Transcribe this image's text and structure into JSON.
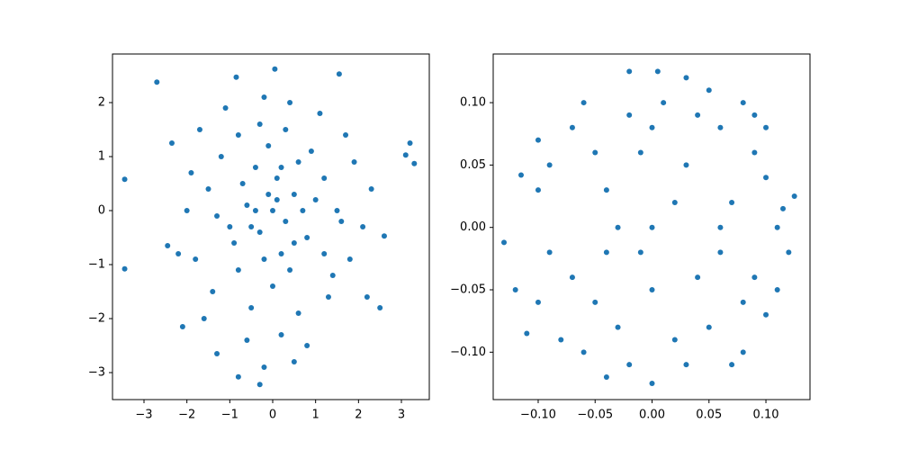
{
  "chart_data": [
    {
      "type": "scatter",
      "color": "#1f77b4",
      "x": [
        -3.45,
        -3.45,
        -2.7,
        3.1,
        3.2,
        3.3,
        0.05,
        -0.3,
        -0.8,
        1.55,
        -0.85,
        2.6,
        2.5,
        2.2,
        -2.1,
        -1.3,
        0.5,
        -0.2,
        -2.45,
        -2.35,
        0.1,
        -0.3,
        0.5,
        -0.6,
        0.2,
        -0.1,
        0.8,
        -1.0,
        1.2,
        -0.4,
        0.3,
        -1.5,
        1.6,
        0.0,
        -0.8,
        0.9,
        -1.2,
        1.4,
        -0.5,
        0.6,
        -1.8,
        1.9,
        0.4,
        -0.2,
        -1.1,
        1.1,
        -2.0,
        2.1,
        -0.7,
        0.7,
        -0.2,
        0.1,
        -0.9,
        1.0,
        -1.4,
        1.3,
        0.2,
        -0.6,
        1.7,
        -1.7,
        0.3,
        -0.4,
        0.6,
        -0.1,
        0.4,
        -1.3,
        1.5,
        -0.3,
        0.8,
        -2.2,
        2.3,
        -1.6,
        1.8,
        0.0,
        -0.5,
        0.2,
        1.2,
        -0.8,
        0.5,
        -1.9
      ],
      "y": [
        0.58,
        -1.08,
        2.38,
        1.03,
        1.25,
        0.87,
        2.62,
        -3.22,
        -3.08,
        2.53,
        2.47,
        -0.47,
        -1.8,
        -1.6,
        -2.15,
        -2.65,
        -2.8,
        -2.9,
        -0.65,
        1.25,
        0.2,
        -0.4,
        0.3,
        0.1,
        -0.8,
        1.2,
        -0.5,
        -0.3,
        0.6,
        0.8,
        1.5,
        0.4,
        -0.2,
        -1.4,
        -1.1,
        1.1,
        1.0,
        -1.2,
        -1.8,
        -1.9,
        -0.9,
        0.9,
        2.0,
        2.1,
        1.9,
        1.8,
        0.0,
        -0.3,
        0.5,
        0.0,
        -0.9,
        0.6,
        -0.6,
        0.2,
        -1.5,
        -1.6,
        -2.3,
        -2.4,
        1.4,
        1.5,
        -0.2,
        0.0,
        0.9,
        0.3,
        -1.1,
        -0.1,
        0.0,
        1.6,
        -2.5,
        -0.8,
        0.4,
        -2.0,
        -0.9,
        0.0,
        -0.3,
        0.8,
        -0.8,
        1.4,
        -0.6,
        0.7
      ],
      "xlim": [
        -3.734,
        3.65
      ],
      "ylim": [
        -3.5,
        2.9
      ],
      "xticks": [
        {
          "value": -3,
          "label": "−3"
        },
        {
          "value": -2,
          "label": "−2"
        },
        {
          "value": -1,
          "label": "−1"
        },
        0,
        1,
        2,
        3
      ],
      "yticks": [
        {
          "value": -3,
          "label": "−3"
        },
        {
          "value": -2,
          "label": "−2"
        },
        {
          "value": -1,
          "label": "−1"
        },
        0,
        1,
        2
      ]
    },
    {
      "type": "scatter",
      "color": "#1f77b4",
      "x": [
        0,
        0.03,
        -0.04,
        0.06,
        -0.05,
        0.02,
        -0.07,
        0.09,
        0.1,
        -0.09,
        0.01,
        -0.02,
        0.05,
        -0.06,
        0.11,
        0.08,
        -0.03,
        0.04,
        -0.1,
        0.07,
        -0.01,
        0.03,
        -0.08,
        0.09,
        -0.04,
        0.06,
        -0.05,
        0.0,
        0.1,
        -0.06,
        0.02,
        -0.02,
        0.11,
        0.04,
        -0.07,
        0.08,
        0.0,
        -0.03,
        0.05,
        -0.09,
        0.1,
        0.12,
        0.115,
        -0.04,
        0.03,
        0.09,
        -0.1,
        0.07,
        0.06,
        -0.01,
        -0.13,
        -0.115,
        -0.1,
        -0.12,
        -0.11,
        0.125,
        0.005,
        -0.02,
        0.0,
        0.08
      ],
      "y": [
        0,
        0.05,
        0.03,
        -0.02,
        -0.06,
        -0.09,
        0.08,
        0.06,
        -0.07,
        -0.02,
        0.1,
        -0.11,
        0.11,
        0.1,
        0.0,
        -0.1,
        -0.08,
        -0.04,
        0.03,
        0.02,
        0.06,
        -0.11,
        -0.09,
        -0.04,
        -0.02,
        0.08,
        0.06,
        -0.05,
        0.04,
        -0.1,
        0.02,
        0.09,
        -0.05,
        0.09,
        -0.04,
        -0.06,
        0.08,
        0.0,
        -0.08,
        0.05,
        0.08,
        -0.02,
        0.015,
        -0.12,
        0.12,
        0.09,
        -0.06,
        -0.11,
        0.0,
        -0.02,
        -0.012,
        0.042,
        0.07,
        -0.05,
        -0.085,
        0.025,
        0.125,
        0.125,
        -0.125,
        0.1
      ],
      "xlim": [
        -0.1395,
        0.1387
      ],
      "ylim": [
        -0.138,
        0.139
      ],
      "xticks": [
        {
          "value": -0.1,
          "label": "−0.10"
        },
        {
          "value": -0.05,
          "label": "−0.05"
        },
        {
          "value": 0,
          "label": "0.00"
        },
        {
          "value": 0.05,
          "label": "0.05"
        },
        {
          "value": 0.1,
          "label": "0.10"
        }
      ],
      "yticks": [
        {
          "value": -0.1,
          "label": "−0.10"
        },
        {
          "value": -0.05,
          "label": "−0.05"
        },
        {
          "value": 0,
          "label": "0.00"
        },
        {
          "value": 0.05,
          "label": "0.05"
        },
        {
          "value": 0.1,
          "label": "0.10"
        }
      ]
    }
  ]
}
